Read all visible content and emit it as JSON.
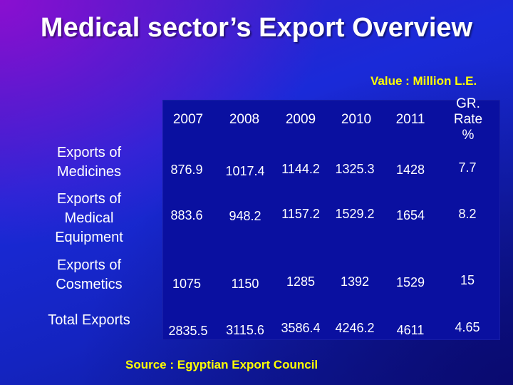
{
  "title": "Medical sector’s Export Overview",
  "unit_label": "Value : Million L.E.",
  "columns": [
    "2007",
    "2008",
    "2009",
    "2010",
    "2011",
    "GR. Rate %"
  ],
  "rows": [
    {
      "label": "Exports of Medicines",
      "values": [
        "876.9",
        "1017.4",
        "1144.2",
        "1325.3",
        "1428",
        "7.7"
      ]
    },
    {
      "label": "Exports of Medical Equipment",
      "values": [
        "883.6",
        "948.2",
        "1157.2",
        "1529.2",
        "1654",
        "8.2"
      ]
    },
    {
      "label": "Exports of Cosmetics",
      "values": [
        "1075",
        "1150",
        "1285",
        "1392",
        "1529",
        "15"
      ]
    },
    {
      "label": "Total Exports",
      "values": [
        "2835.5",
        "3115.6",
        "3586.4",
        "4246.2",
        "4611",
        "4.65"
      ]
    }
  ],
  "source": "Source : Egyptian Export Council",
  "colors": {
    "accent_yellow": "#ffff00",
    "panel": "#0a10a0",
    "text": "#ffffff"
  }
}
